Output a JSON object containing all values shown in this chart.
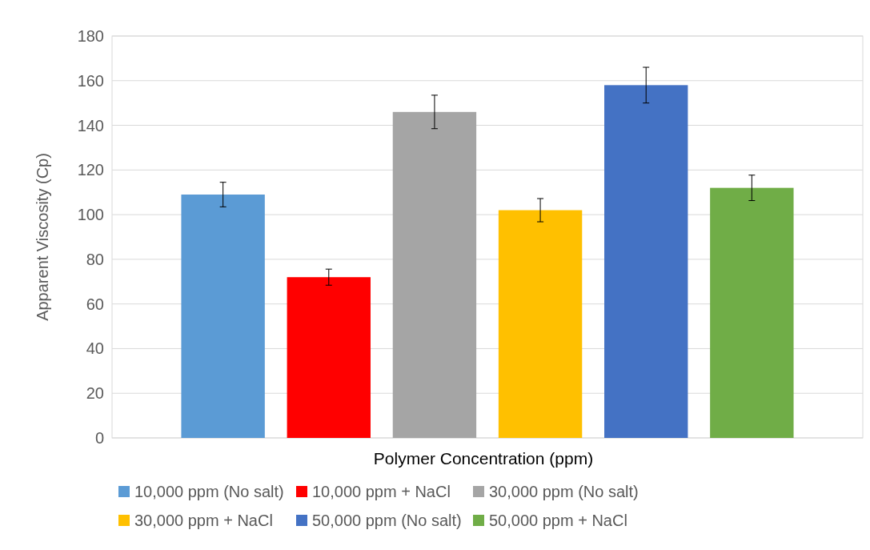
{
  "chart_data": {
    "type": "bar",
    "xlabel": "Polymer Concentration (ppm)",
    "ylabel": "Apparent Viscosity (Cp)",
    "categories": [
      null
    ],
    "ylim": [
      0,
      180
    ],
    "yticks": [
      0,
      20,
      40,
      60,
      80,
      100,
      120,
      140,
      160,
      180
    ],
    "grid": "y",
    "legend": "bottom",
    "series": [
      {
        "name": "10,000 ppm (No salt)",
        "color": "#5b9bd5",
        "values": [
          109
        ],
        "errors": [
          5.5
        ]
      },
      {
        "name": "10,000 ppm + NaCl",
        "color": "#ff0000",
        "values": [
          72
        ],
        "errors": [
          3.6
        ]
      },
      {
        "name": "30,000 ppm (No salt)",
        "color": "#a5a5a5",
        "values": [
          146
        ],
        "errors": [
          7.5
        ]
      },
      {
        "name": "30,000 ppm + NaCl",
        "color": "#ffc000",
        "values": [
          102
        ],
        "errors": [
          5.2
        ]
      },
      {
        "name": "50,000 ppm (No salt)",
        "color": "#4472c4",
        "values": [
          158
        ],
        "errors": [
          8
        ]
      },
      {
        "name": "50,000 ppm + NaCl",
        "color": "#70ad47",
        "values": [
          112
        ],
        "errors": [
          5.7
        ]
      }
    ]
  }
}
